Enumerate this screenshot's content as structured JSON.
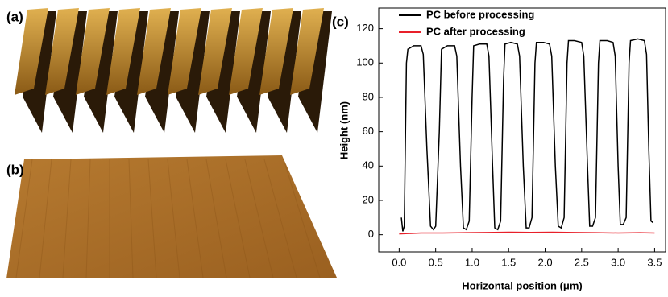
{
  "panels": [
    {
      "label": "(a)"
    },
    {
      "label": "(b)"
    }
  ],
  "chart_data": {
    "type": "line",
    "panel_label": "(c)",
    "x_label": "Horizontal position (μm)",
    "y_label": "Height (nm)",
    "xlim": [
      -0.28,
      3.65
    ],
    "ylim": [
      -10,
      132
    ],
    "xticks": [
      {
        "value": 0,
        "label": "0.0"
      },
      {
        "value": 0.5,
        "label": "0.5"
      },
      {
        "value": 1,
        "label": "1.0"
      },
      {
        "value": 1.5,
        "label": "1.5"
      },
      {
        "value": 2,
        "label": "2.0"
      },
      {
        "value": 2.5,
        "label": "2.5"
      },
      {
        "value": 3,
        "label": "3.0"
      },
      {
        "value": 3.5,
        "label": "3.5"
      }
    ],
    "yticks": [
      0,
      20,
      40,
      60,
      80,
      100,
      120
    ],
    "legend": "upper left",
    "series": [
      {
        "name": "PC before processing",
        "color": "#000000",
        "x": [
          0.03,
          0.05,
          0.07,
          0.1,
          0.12,
          0.2,
          0.3,
          0.33,
          0.38,
          0.43,
          0.47,
          0.5,
          0.55,
          0.58,
          0.66,
          0.76,
          0.79,
          0.84,
          0.88,
          0.92,
          0.96,
          1.0,
          1.02,
          1.1,
          1.2,
          1.23,
          1.28,
          1.31,
          1.35,
          1.39,
          1.43,
          1.45,
          1.53,
          1.62,
          1.65,
          1.7,
          1.74,
          1.78,
          1.82,
          1.86,
          1.88,
          1.98,
          2.06,
          2.09,
          2.14,
          2.18,
          2.22,
          2.26,
          2.3,
          2.32,
          2.4,
          2.5,
          2.53,
          2.58,
          2.61,
          2.65,
          2.69,
          2.73,
          2.75,
          2.85,
          2.93,
          2.96,
          3.0,
          3.03,
          3.07,
          3.11,
          3.15,
          3.17,
          3.27,
          3.36,
          3.39,
          3.42,
          3.45,
          3.48
        ],
        "values": [
          10,
          2,
          5,
          100,
          108,
          110,
          110,
          105,
          50,
          5,
          3,
          5,
          60,
          108,
          110,
          110,
          104,
          40,
          4,
          3,
          8,
          80,
          110,
          111,
          111,
          104,
          40,
          4,
          3,
          8,
          90,
          111,
          112,
          111,
          104,
          40,
          4,
          4,
          10,
          100,
          112,
          112,
          111,
          104,
          40,
          5,
          4,
          10,
          100,
          113,
          113,
          112,
          104,
          40,
          5,
          5,
          10,
          100,
          113,
          113,
          112,
          104,
          40,
          6,
          6,
          10,
          100,
          113,
          114,
          113,
          105,
          50,
          8,
          7
        ]
      },
      {
        "name": "PC after processing",
        "color": "#e8202a",
        "x": [
          0.0,
          0.3,
          0.6,
          0.9,
          1.2,
          1.5,
          1.8,
          2.1,
          2.4,
          2.7,
          3.0,
          3.3,
          3.5
        ],
        "values": [
          0.5,
          1,
          1,
          1.2,
          1.3,
          1.5,
          1.4,
          1.5,
          1.3,
          1.2,
          1,
          1.2,
          1
        ]
      }
    ]
  }
}
